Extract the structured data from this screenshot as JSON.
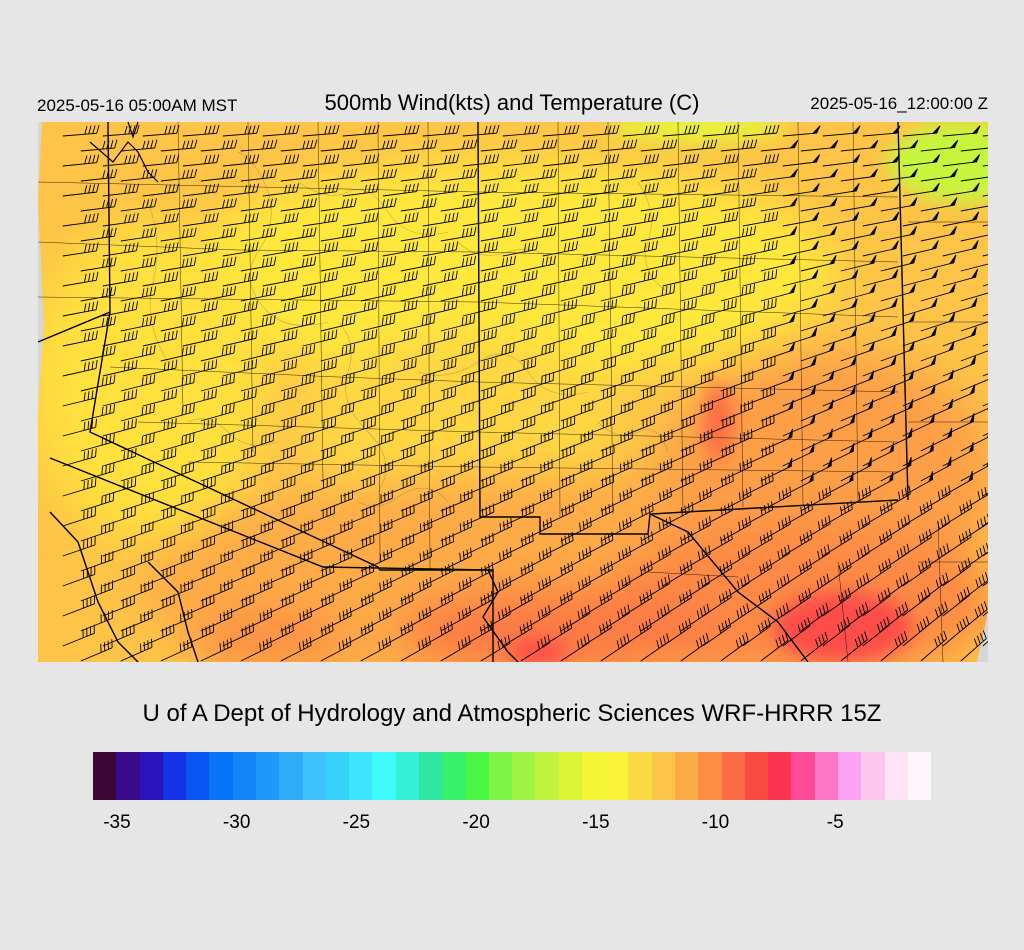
{
  "header": {
    "valid_local": "2025-05-16 05:00AM MST",
    "title": "500mb Wind(kts) and Temperature (C)",
    "valid_utc": "2025-05-16_12:00:00 Z"
  },
  "credit": "U of A Dept of Hydrology and Atmospheric Sciences WRF-HRRR 15Z",
  "legend": {
    "min": -36,
    "max": -1,
    "colors": [
      "#3b0838",
      "#3a0a8c",
      "#2b13bb",
      "#1432e6",
      "#0b55f4",
      "#0a74f9",
      "#1486f7",
      "#1e98f9",
      "#2fadf7",
      "#3ec3fb",
      "#37d3fc",
      "#3ce4fd",
      "#3dfbfb",
      "#34f0d4",
      "#2fe6a2",
      "#36f26b",
      "#4cf744",
      "#7ef545",
      "#9ef443",
      "#c0f23f",
      "#dbf436",
      "#f4f535",
      "#f9f43a",
      "#fbdb43",
      "#fbc647",
      "#fbac46",
      "#fb8e43",
      "#fb6c44",
      "#fb4a44",
      "#fc3350",
      "#fc4a98",
      "#fc78c7",
      "#fca2f3",
      "#fcc6f1",
      "#fde4f7",
      "#fdf6fb"
    ],
    "ticks": [
      "-35",
      "-30",
      "-25",
      "-20",
      "-15",
      "-10",
      "-5"
    ],
    "tick_values": [
      -35,
      -30,
      -25,
      -20,
      -15,
      -10,
      -5
    ]
  },
  "map": {
    "field": "temperature_500mb",
    "field_colors": {
      "cold": "#ffe23a",
      "mid": "#fdb447",
      "warm": "#fc8f45",
      "hot": "#fc4a48",
      "northeast_green": "#c7f53e"
    },
    "wind_barbs": "westerly-to-southwesterly"
  }
}
